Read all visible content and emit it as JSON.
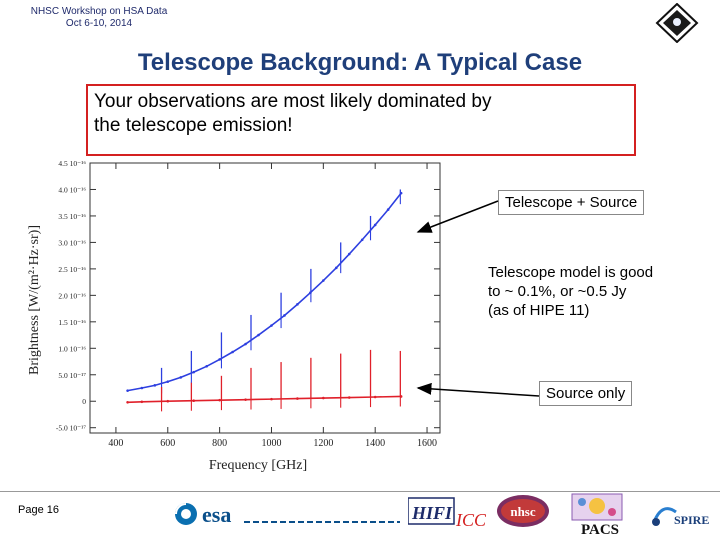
{
  "header": {
    "line1": "NHSC Workshop on HSA Data",
    "line2": "Oct 6-10, 2014"
  },
  "slide_title": "Telescope Background:  A Typical Case",
  "callout": {
    "line1": "Your observations are most likely dominated by",
    "line2": "the telescope emission!"
  },
  "annotations": {
    "telescope_source": "Telescope + Source",
    "model_line1": "Telescope model is good",
    "model_line2": "to ~ 0.1%, or ~0.5 Jy",
    "model_line3": "(as of HIPE 11)",
    "source_only": "Source only"
  },
  "footer": {
    "page": "Page 16",
    "logos": [
      "esa",
      "HIFI",
      "nhsc",
      "PACS",
      "SPIRE"
    ]
  },
  "colors": {
    "telescope_source": "#2d3fe0",
    "source_only": "#e0202a",
    "title": "#1f3f7a",
    "callout_border": "#d42020"
  },
  "chart_data": {
    "type": "line",
    "xlabel": "Frequency [GHz]",
    "ylabel": "Brightness [W/(m²·Hz·sr)]",
    "xlim": [
      300,
      1650
    ],
    "ylim": [
      -6e-17,
      4.5e-16
    ],
    "x_ticks": [
      400,
      600,
      800,
      1000,
      1200,
      1400,
      1600
    ],
    "y_ticks": [
      -5e-17,
      0,
      5e-17,
      1e-16,
      1.5e-16,
      2e-16,
      2.5e-16,
      3e-16,
      3.5e-16,
      4e-16,
      4.5e-16
    ],
    "y_tick_labels": [
      "-5.0 10⁻¹⁷",
      "0",
      "5.0 10⁻¹⁷",
      "1.0 10⁻¹⁶",
      "1.5 10⁻¹⁶",
      "2.0 10⁻¹⁶",
      "2.5 10⁻¹⁶",
      "3.0 10⁻¹⁶",
      "3.5 10⁻¹⁶",
      "4.0 10⁻¹⁶",
      "4.5 10⁻¹⁶"
    ],
    "series": [
      {
        "name": "Telescope + Source",
        "x": [
          445,
          500,
          550,
          600,
          650,
          700,
          750,
          800,
          850,
          900,
          950,
          1000,
          1050,
          1100,
          1150,
          1200,
          1250,
          1300,
          1350,
          1400,
          1450,
          1500
        ],
        "y": [
          2e-17,
          2.5e-17,
          3e-17,
          3.7e-17,
          4.5e-17,
          5.5e-17,
          6.6e-17,
          7.9e-17,
          9.3e-17,
          1.08e-16,
          1.25e-16,
          1.43e-16,
          1.62e-16,
          1.83e-16,
          2.05e-16,
          2.28e-16,
          2.52e-16,
          2.78e-16,
          3.05e-16,
          3.33e-16,
          3.62e-16,
          3.93e-16
        ],
        "lines": [
          {
            "x": 576,
            "peak": 6.3e-17
          },
          {
            "x": 691,
            "peak": 9.5e-17
          },
          {
            "x": 807,
            "peak": 1.3e-16
          },
          {
            "x": 921,
            "peak": 1.63e-16
          },
          {
            "x": 1037,
            "peak": 2.05e-16
          },
          {
            "x": 1152,
            "peak": 2.5e-16
          },
          {
            "x": 1267,
            "peak": 3e-16
          },
          {
            "x": 1382,
            "peak": 3.5e-16
          },
          {
            "x": 1497,
            "peak": 4e-16
          }
        ]
      },
      {
        "name": "Source only",
        "x": [
          445,
          500,
          600,
          700,
          800,
          900,
          1000,
          1100,
          1200,
          1300,
          1400,
          1500
        ],
        "y": [
          -2e-18,
          -1e-18,
          0,
          1e-18,
          2e-18,
          3e-18,
          4e-18,
          5e-18,
          6e-18,
          7e-18,
          8e-18,
          9e-18
        ],
        "lines": [
          {
            "x": 576,
            "peak": 2.7e-17
          },
          {
            "x": 691,
            "peak": 3.5e-17
          },
          {
            "x": 807,
            "peak": 4.8e-17
          },
          {
            "x": 921,
            "peak": 6.3e-17
          },
          {
            "x": 1037,
            "peak": 7.4e-17
          },
          {
            "x": 1152,
            "peak": 8.2e-17
          },
          {
            "x": 1267,
            "peak": 9e-17
          },
          {
            "x": 1382,
            "peak": 9.7e-17
          },
          {
            "x": 1497,
            "peak": 9.5e-17
          }
        ]
      }
    ]
  }
}
